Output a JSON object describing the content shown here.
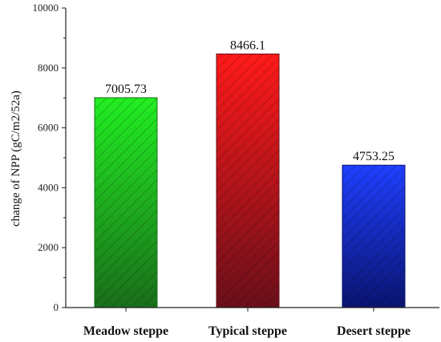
{
  "chart_data": {
    "type": "bar",
    "title": "",
    "xlabel": "",
    "ylabel": "change of NPP (gC/m2/52a)",
    "ylim": [
      0,
      10000
    ],
    "yticks": [
      0,
      2000,
      4000,
      6000,
      8000,
      10000
    ],
    "grid": false,
    "categories": [
      "Meadow steppe",
      "Typical steppe",
      "Desert steppe"
    ],
    "values": [
      7005.73,
      8466.1,
      4753.25
    ],
    "data_labels": [
      "7005.73",
      "8466.1",
      "4753.25"
    ],
    "colors": [
      {
        "top": "#22ee22",
        "bottom": "#1a6e1a"
      },
      {
        "top": "#ff1a1a",
        "bottom": "#6a0f1a"
      },
      {
        "top": "#1f3fff",
        "bottom": "#0a1470"
      }
    ],
    "pattern": "diagonal-hatch"
  }
}
